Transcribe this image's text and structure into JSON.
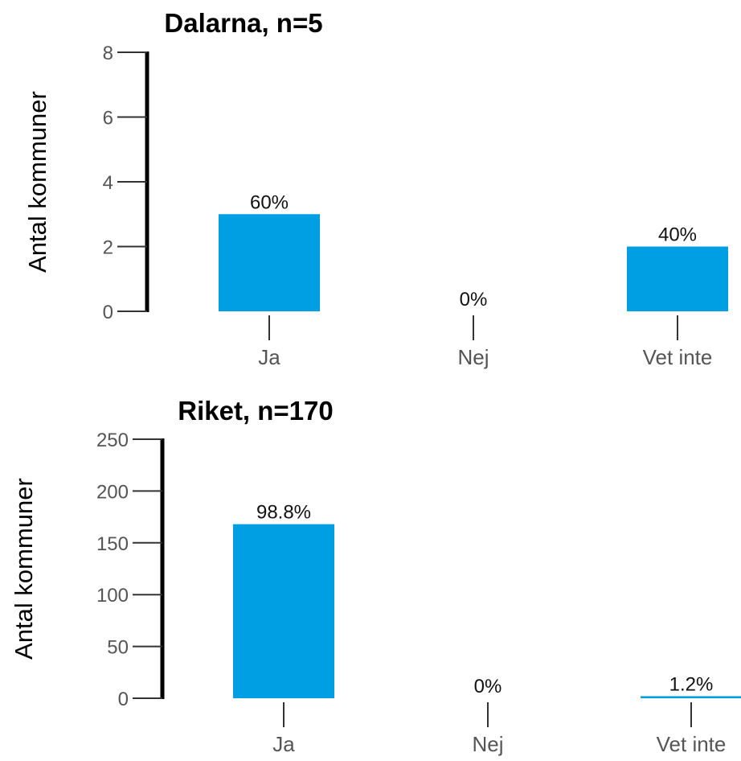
{
  "colors": {
    "bar": "#009fe3",
    "axis": "#000000",
    "tick": "#333333"
  },
  "chart_data": [
    {
      "type": "bar",
      "title": "Dalarna, n=5",
      "xlabel": "",
      "ylabel": "Antal kommuner",
      "categories": [
        "Ja",
        "Nej",
        "Vet inte"
      ],
      "values": [
        3,
        0,
        2
      ],
      "data_labels": [
        "60%",
        "0%",
        "40%"
      ],
      "yticks": [
        0,
        2,
        4,
        6,
        8
      ],
      "ylim": [
        0,
        8
      ],
      "grid": false,
      "legend": "none"
    },
    {
      "type": "bar",
      "title": "Riket, n=170",
      "xlabel": "",
      "ylabel": "Antal kommuner",
      "categories": [
        "Ja",
        "Nej",
        "Vet inte"
      ],
      "values": [
        168,
        0,
        2
      ],
      "data_labels": [
        "98.8%",
        "0%",
        "1.2%"
      ],
      "yticks": [
        0,
        50,
        100,
        150,
        200,
        250
      ],
      "ylim": [
        0,
        250
      ],
      "grid": false,
      "legend": "none"
    }
  ]
}
